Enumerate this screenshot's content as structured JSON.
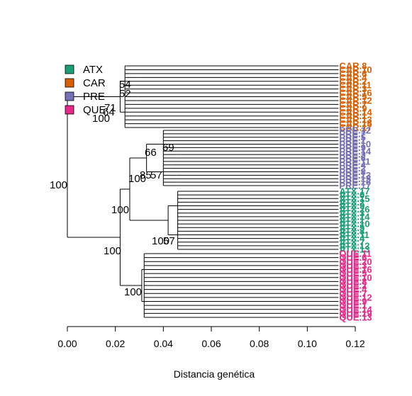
{
  "chart_data": {
    "type": "dendrogram",
    "xlabel": "Distancia genética",
    "xlim": [
      0.0,
      0.12
    ],
    "x_ticks": [
      "0.00",
      "0.02",
      "0.04",
      "0.06",
      "0.08",
      "0.10",
      "0.12"
    ],
    "grid": false,
    "legend": {
      "placement": "top-left",
      "entries": [
        {
          "name": "ATX",
          "color": "#1b9e77"
        },
        {
          "name": "CAR",
          "color": "#d95f02"
        },
        {
          "name": "PRE",
          "color": "#7570b3"
        },
        {
          "name": "QUE",
          "color": "#e7298a"
        }
      ]
    },
    "groups": [
      {
        "name": "CAR",
        "color": "#d95f02",
        "tips": [
          "CAR.8",
          "CAR.10",
          "CAR.6",
          "CAR.4",
          "CAR.2",
          "CAR.11",
          "CAR.3",
          "CAR.16",
          "CAR.5",
          "CAR.12",
          "CAR.7",
          "CAR.9",
          "CAR.14",
          "CAR.1",
          "CAR.13",
          "CAR.15",
          "CAR.17"
        ],
        "clade_distance": 0.022,
        "support": [
          {
            "label": "54",
            "distance": 0.023
          },
          {
            "label": "52",
            "distance": 0.023
          },
          {
            "label": "71",
            "distance": 0.019
          },
          {
            "label": "64",
            "distance": 0.017
          }
        ]
      },
      {
        "name": "PRE",
        "color": "#7570b3",
        "tips": [
          "PRE.12",
          "PRE.7",
          "PRE.5",
          "PRE.1",
          "PRE.10",
          "PRE.9",
          "PRE.14",
          "PRE.3",
          "PRE.6",
          "PRE.11",
          "PRE.4",
          "PRE.2",
          "PRE.8",
          "PRE.13",
          "PRE.15",
          "PRE.16",
          "PRE.17"
        ],
        "clade_distance": 0.033,
        "support": [
          {
            "label": "66",
            "distance": 0.038
          },
          {
            "label": "69",
            "distance": 0.042
          },
          {
            "label": "85",
            "distance": 0.033
          },
          {
            "label": "57",
            "distance": 0.036
          }
        ]
      },
      {
        "name": "ATX",
        "color": "#1b9e77",
        "tips": [
          "ATX.17",
          "ATX.6",
          "ATX.15",
          "ATX.2",
          "ATX.9",
          "ATX.26",
          "ATX.3",
          "ATX.14",
          "ATX.1",
          "ATX.10",
          "ATX.5",
          "ATX.8",
          "ATX.11",
          "ATX.4",
          "ATX.7",
          "ATX.12",
          "ATX.13"
        ],
        "clade_distance": 0.042,
        "support": [
          {
            "label": "100",
            "distance": 0.041
          },
          {
            "label": "57",
            "distance": 0.044
          }
        ]
      },
      {
        "name": "QUE",
        "color": "#e7298a",
        "tips": [
          "QUE.11",
          "QUE.6",
          "QUE.20",
          "QUE.3",
          "QUE.16",
          "QUE.5",
          "QUE.10",
          "QUE.8",
          "QUE.2",
          "QUE.4",
          "QUE.7",
          "QUE.12",
          "QUE.9",
          "QUE.1",
          "QUE.14",
          "QUE.19",
          "QUE.13"
        ],
        "clade_distance": 0.031,
        "support": [
          {
            "label": "100",
            "distance": 0.031
          }
        ]
      }
    ],
    "higher_nodes": [
      {
        "label": "100",
        "distance": 0.017,
        "joins": [
          "CAR",
          "rest"
        ]
      },
      {
        "label": "100",
        "distance": 0.0,
        "joins": [
          "CAR",
          "PRE+ATX+QUE"
        ]
      },
      {
        "label": "100",
        "distance": 0.026,
        "joins": [
          "PRE",
          "ATX"
        ]
      },
      {
        "label": "100",
        "distance": 0.022,
        "joins": [
          "PRE+ATX",
          "QUE"
        ]
      },
      {
        "label": "100",
        "distance": 0.033,
        "joins": [
          "PRE internal"
        ]
      }
    ]
  }
}
